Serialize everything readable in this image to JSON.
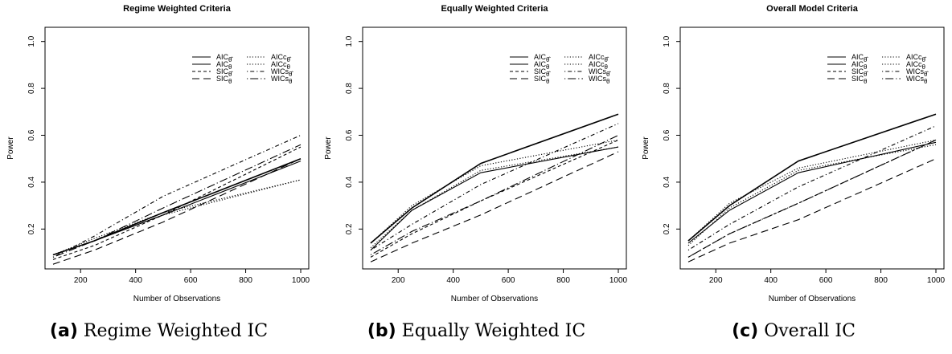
{
  "chart_data": [
    {
      "type": "line",
      "title": "Regime Weighted Criteria",
      "xlabel": "Number of Observations",
      "ylabel": "Power",
      "x": [
        100,
        250,
        500,
        1000
      ],
      "xlim": [
        100,
        1000
      ],
      "ylim": [
        0.0,
        1.0
      ],
      "xticks": [
        "200",
        "400",
        "600",
        "800",
        "1000"
      ],
      "yticks": [
        "0.2",
        "0.4",
        "0.6",
        "0.8",
        "1.0"
      ],
      "grid": false,
      "legend_position": "top-right",
      "series": [
        {
          "name": "AIC",
          "sub": "θ̂",
          "dash": "solid",
          "values": [
            0.09,
            0.15,
            0.27,
            0.5
          ]
        },
        {
          "name": "AIC",
          "sub": "θ",
          "dash": "solid",
          "values": [
            0.09,
            0.15,
            0.26,
            0.49
          ]
        },
        {
          "name": "SIC",
          "sub": "θ̂",
          "dash": "shortdash",
          "values": [
            0.07,
            0.13,
            0.26,
            0.55
          ]
        },
        {
          "name": "SIC",
          "sub": "θ",
          "dash": "longdash",
          "values": [
            0.05,
            0.11,
            0.23,
            0.5
          ]
        },
        {
          "name": "AICc",
          "sub": "θ̂",
          "dash": "dotted",
          "values": [
            0.09,
            0.16,
            0.27,
            0.41
          ]
        },
        {
          "name": "AICc",
          "sub": "θ",
          "dash": "dotted",
          "values": [
            0.09,
            0.15,
            0.26,
            0.41
          ]
        },
        {
          "name": "WICs",
          "sub": "θ̂",
          "dash": "dotdash",
          "values": [
            0.08,
            0.17,
            0.34,
            0.6
          ]
        },
        {
          "name": "WICs",
          "sub": "θ",
          "dash": "longdotdash",
          "values": [
            0.08,
            0.15,
            0.29,
            0.56
          ]
        }
      ]
    },
    {
      "type": "line",
      "title": "Equally Weighted Criteria",
      "xlabel": "Number of Observations",
      "ylabel": "Power",
      "x": [
        100,
        250,
        500,
        1000
      ],
      "xlim": [
        100,
        1000
      ],
      "ylim": [
        0.0,
        1.0
      ],
      "xticks": [
        "200",
        "400",
        "600",
        "800",
        "1000"
      ],
      "yticks": [
        "0.2",
        "0.4",
        "0.6",
        "0.8",
        "1.0"
      ],
      "grid": false,
      "legend_position": "top-right",
      "series": [
        {
          "name": "AIC",
          "sub": "θ̂",
          "dash": "solid",
          "values": [
            0.14,
            0.29,
            0.48,
            0.69
          ]
        },
        {
          "name": "AIC",
          "sub": "θ",
          "dash": "solid",
          "values": [
            0.11,
            0.28,
            0.44,
            0.55
          ]
        },
        {
          "name": "SIC",
          "sub": "θ̂",
          "dash": "shortdash",
          "values": [
            0.08,
            0.18,
            0.32,
            0.58
          ]
        },
        {
          "name": "SIC",
          "sub": "θ",
          "dash": "longdash",
          "values": [
            0.06,
            0.14,
            0.26,
            0.53
          ]
        },
        {
          "name": "AICc",
          "sub": "θ̂",
          "dash": "dotted",
          "values": [
            0.14,
            0.3,
            0.47,
            0.58
          ]
        },
        {
          "name": "AICc",
          "sub": "θ",
          "dash": "dotted",
          "values": [
            0.12,
            0.28,
            0.45,
            0.55
          ]
        },
        {
          "name": "WICs",
          "sub": "θ̂",
          "dash": "dotdash",
          "values": [
            0.11,
            0.22,
            0.39,
            0.65
          ]
        },
        {
          "name": "WICs",
          "sub": "θ",
          "dash": "longdotdash",
          "values": [
            0.09,
            0.19,
            0.32,
            0.6
          ]
        }
      ]
    },
    {
      "type": "line",
      "title": "Overall Model Criteria",
      "xlabel": "Number of Observations",
      "ylabel": "Power",
      "x": [
        100,
        250,
        500,
        1000
      ],
      "xlim": [
        100,
        1000
      ],
      "ylim": [
        0.0,
        1.0
      ],
      "xticks": [
        "200",
        "400",
        "600",
        "800",
        "1000"
      ],
      "yticks": [
        "0.2",
        "0.4",
        "0.6",
        "0.8",
        "1.0"
      ],
      "grid": false,
      "legend_position": "top-right",
      "series": [
        {
          "name": "AIC",
          "sub": "θ̂",
          "dash": "solid",
          "values": [
            0.15,
            0.3,
            0.49,
            0.69
          ]
        },
        {
          "name": "AIC",
          "sub": "θ",
          "dash": "solid",
          "values": [
            0.14,
            0.28,
            0.44,
            0.57
          ]
        },
        {
          "name": "SIC",
          "sub": "θ̂",
          "dash": "shortdash",
          "values": [
            0.08,
            0.18,
            0.31,
            0.58
          ]
        },
        {
          "name": "SIC",
          "sub": "θ",
          "dash": "longdash",
          "values": [
            0.06,
            0.14,
            0.24,
            0.5
          ]
        },
        {
          "name": "AICc",
          "sub": "θ̂",
          "dash": "dotted",
          "values": [
            0.15,
            0.31,
            0.46,
            0.58
          ]
        },
        {
          "name": "AICc",
          "sub": "θ",
          "dash": "dotted",
          "values": [
            0.13,
            0.29,
            0.45,
            0.56
          ]
        },
        {
          "name": "WICs",
          "sub": "θ̂",
          "dash": "dotdash",
          "values": [
            0.11,
            0.22,
            0.38,
            0.64
          ]
        },
        {
          "name": "WICs",
          "sub": "θ",
          "dash": "longdotdash",
          "values": [
            0.08,
            0.18,
            0.31,
            0.58
          ]
        }
      ]
    }
  ],
  "captions": [
    {
      "letter": "(a)",
      "text": "Regime Weighted IC"
    },
    {
      "letter": "(b)",
      "text": "Equally Weighted IC"
    },
    {
      "letter": "(c)",
      "text": "Overall IC"
    }
  ],
  "colors": {
    "line": "#000000",
    "background": "#ffffff"
  }
}
